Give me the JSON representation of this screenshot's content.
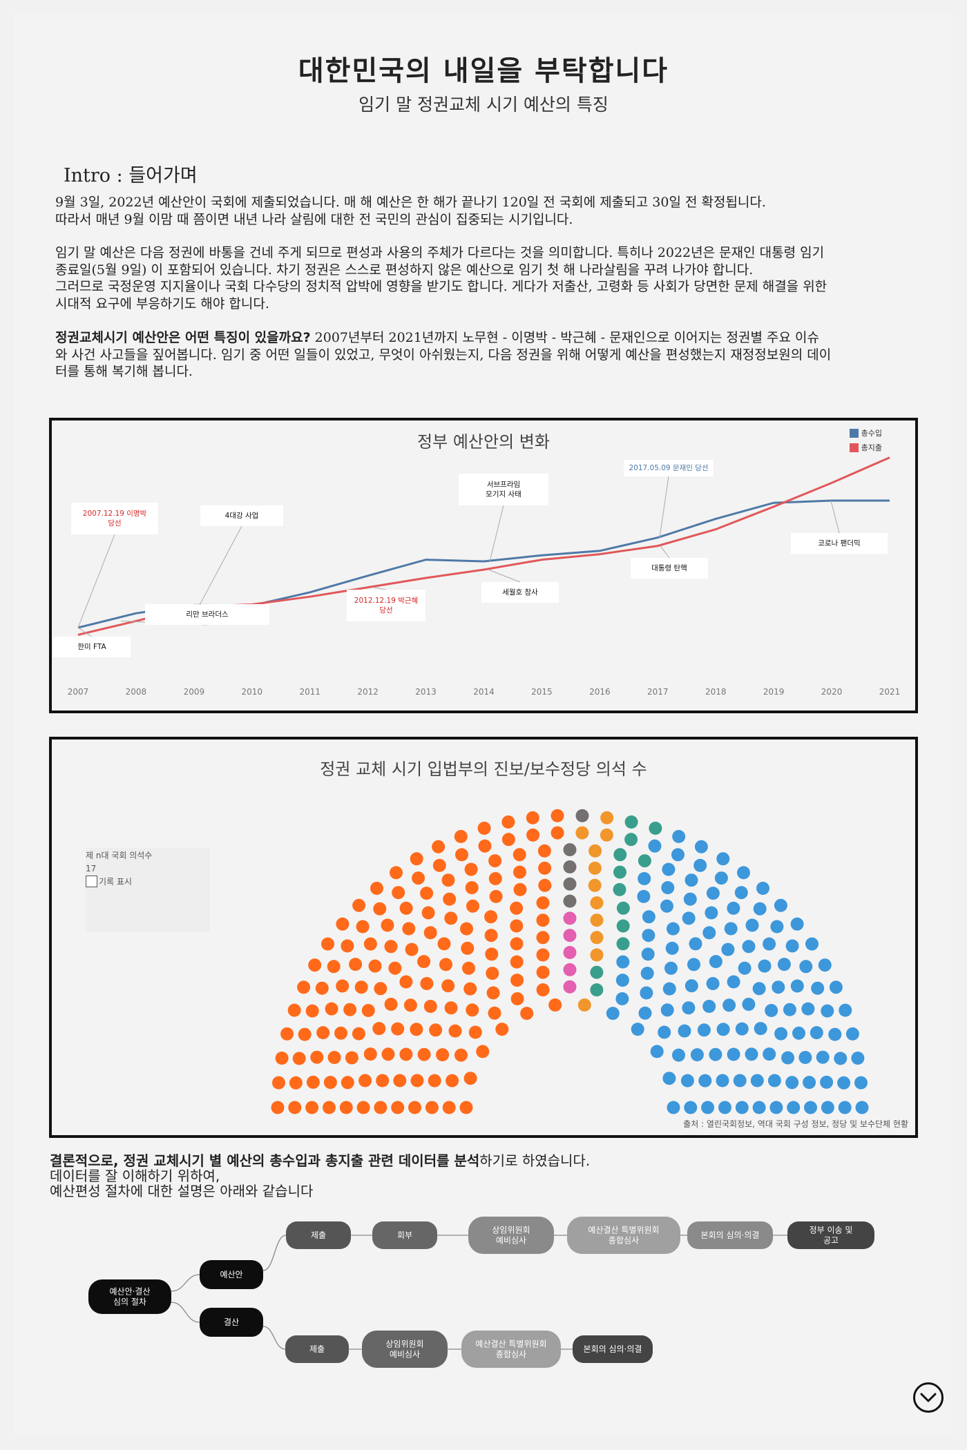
{
  "header": {
    "title": "대한민국의 내일을 부탁합니다",
    "subtitle": "임기 말 정권교체 시기 예산의 특징"
  },
  "intro": {
    "heading": "Intro : 들어가며",
    "p1_l1": " 9월 3일, 2022년 예산안이 국회에 제출되었습니다. 매 해 예산은 한 해가 끝나기 120일 전 국회에 제출되고 30일 전 확정됩니다.",
    "p1_l2": "따라서 매년 9월 이맘 때 쯤이면 내년 나라 살림에 대한 전 국민의 관심이 집중되는 시기입니다.",
    "p2_l1": " 임기 말 예산은 다음 정권에 바통을 건네 주게 되므로 편성과 사용의 주체가 다르다는 것을 의미합니다. 특히나 2022년은 문재인 대통령 임기",
    "p2_l2": "종료일(5월 9일) 이 포함되어 있습니다. 차기 정권은 스스로 편성하지 않은 예산으로 임기 첫 해 나라살림을 꾸려 나가야 합니다.",
    "p2_l3": "그러므로 국정운영 지지율이나 국회 다수당의 정치적 압박에 영향을 받기도 합니다. 게다가 저출산, 고령화 등 사회가 당면한 문제 해결을 위한",
    "p2_l4": "시대적 요구에 부응하기도 해야 합니다.",
    "p3_bold": " 정권교체시기 예산안은 어떤 특징이 있을까요?",
    "p3_l1": "  2007년부터 2021년까지 노무현 - 이명박 - 박근혜 - 문재인으로 이어지는 정권별 주요 이슈",
    "p3_l2": "와 사건 사고들을 짚어봅니다. 임기 중 어떤 일들이 있었고, 무엇이 아쉬웠는지, 다음 정권을 위해 어떻게 예산을 편성했는지 재정정보원의 데이",
    "p3_l3": "터를 통해 복기해 봅니다."
  },
  "chart_data": [
    {
      "type": "line",
      "title": "정부 예산안의 변화",
      "x": [
        "2007",
        "2008",
        "2009",
        "2010",
        "2011",
        "2012",
        "2013",
        "2014",
        "2015",
        "2016",
        "2017",
        "2018",
        "2019",
        "2020",
        "2021"
      ],
      "series": [
        {
          "name": "총수입",
          "color": "#4e79a7",
          "values": [
            250,
            276,
            291,
            290,
            314,
            344,
            373,
            370,
            381,
            389,
            413,
            447,
            476,
            480,
            480
          ]
        },
        {
          "name": "총지출",
          "color": "#e15759",
          "values": [
            237,
            262,
            288,
            292,
            306,
            323,
            340,
            355,
            373,
            383,
            398,
            428,
            469,
            512,
            558
          ]
        }
      ],
      "ylim": [
        150,
        600
      ],
      "grid": false,
      "legend": "top-right",
      "annotations": [
        {
          "text": "한미  FTA",
          "year": "2007",
          "color": "#111"
        },
        {
          "text": "2007.12.19 이명박\n당선",
          "year": "2007",
          "color": "#d62728"
        },
        {
          "text": "리만 브라더스",
          "year": "2008",
          "color": "#111"
        },
        {
          "text": "4대강 사업",
          "year": "2009",
          "color": "#111"
        },
        {
          "text": "2012.12.19 박근혜\n당선",
          "year": "2012",
          "color": "#d62728"
        },
        {
          "text": "서브프라임\n모기지 사태",
          "year": "2014",
          "color": "#111"
        },
        {
          "text": "세월호 참사",
          "year": "2014",
          "color": "#111"
        },
        {
          "text": "2017.05.09 문재인 당선",
          "year": "2017",
          "color": "#4e79a7"
        },
        {
          "text": "대통령 탄핵",
          "year": "2017",
          "color": "#111"
        },
        {
          "text": "코로나 팬더믹",
          "year": "2020",
          "color": "#111"
        }
      ]
    },
    {
      "type": "scatter",
      "title": "정권 교체 시기 입법부의 진보/보수정당 의석 수",
      "groups": [
        {
          "color": "#ff6a1a",
          "count": 145
        },
        {
          "color": "#e35fb0",
          "count": 5
        },
        {
          "color": "#757070",
          "count": 5
        },
        {
          "color": "#f1962a",
          "count": 11
        },
        {
          "color": "#3a9e8c",
          "count": 12
        },
        {
          "color": "#3d97db",
          "count": 121
        }
      ],
      "filter_label": "제 n대 국회 의석수",
      "filter_value": "17",
      "history_label": "기록 표시",
      "source": "출처 : 열린국회정보, 역대 국회 구성 정보, 정당 및 보수단체 현황"
    }
  ],
  "legend": {
    "income": "총수입",
    "expense": "총지출"
  },
  "parliament": {
    "filter_label": "제 n대 국회 의석수",
    "filter_value": "17",
    "history_label": "기록 표시",
    "source": "출처 : 열린국회정보, 역대 국회 구성 정보, 정당 및 보수단체 현황"
  },
  "conclusion": {
    "bold": "결론적으로, 정권 교체시기 별 예산의 총수입과 총지출 관련 데이터를 분석",
    "rest": "하기로 하였습니다.",
    "l2": "데이터를 잘 이해하기 위하여,",
    "l3": "예산편성 절차에 대한 설명은 아래와 같습니다"
  },
  "flow": {
    "root": "예산안·결산\n심의 절차",
    "budget": "예산안",
    "settlement": "결산",
    "budget_steps": [
      "제출",
      "회부",
      "상임위원회\n예비심사",
      "예산결산 특별위원회\n종합심사",
      "본회의 심의·의결",
      "정부 이송 및\n공고"
    ],
    "settle_steps": [
      "제출",
      "상임위원회\n예비심사",
      "예산결산 특별위원회\n종합심사",
      "본회의 심의·의결"
    ]
  }
}
